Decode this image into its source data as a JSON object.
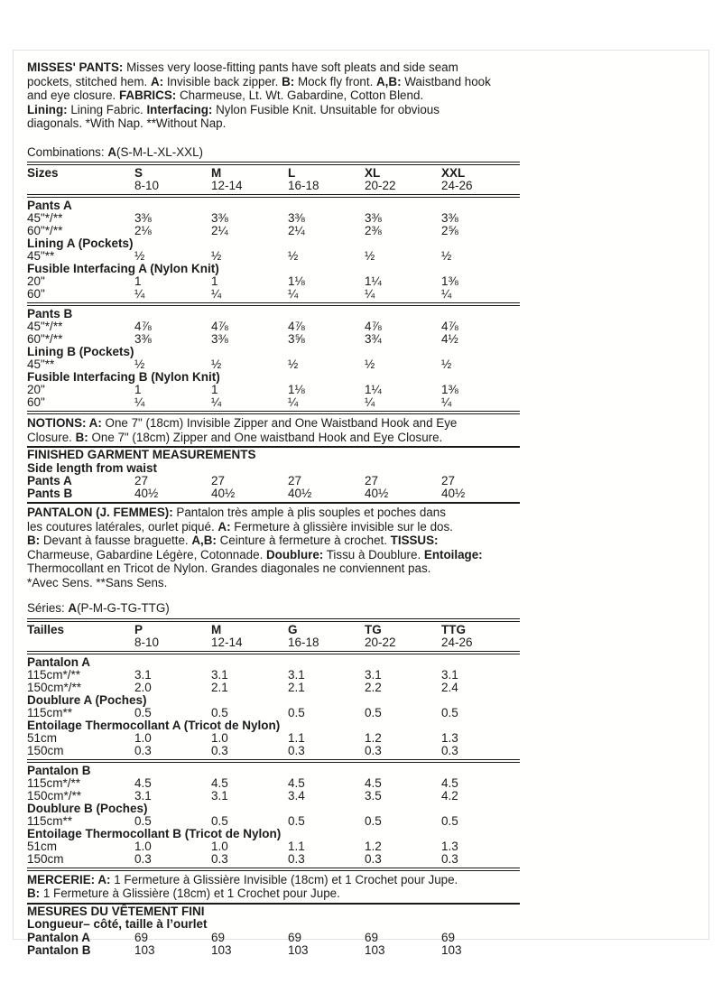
{
  "intro_en": {
    "runs": [
      {
        "t": "MISSES' PANTS:",
        "b": 1
      },
      {
        "t": " Misses very loose-fitting pants have soft pleats and side seam\npockets, stitched hem. "
      },
      {
        "t": "A:",
        "b": 1
      },
      {
        "t": " Invisible back zipper. "
      },
      {
        "t": "B:",
        "b": 1
      },
      {
        "t": " Mock fly front. "
      },
      {
        "t": "A,B:",
        "b": 1
      },
      {
        "t": " Waistband hook\nand eye closure. "
      },
      {
        "t": "FABRICS:",
        "b": 1
      },
      {
        "t": " Charmeuse, Lt. Wt. Gabardine, Cotton Blend.\n"
      },
      {
        "t": "Lining:",
        "b": 1
      },
      {
        "t": " Lining Fabric. "
      },
      {
        "t": "Interfacing:",
        "b": 1
      },
      {
        "t": " Nylon Fusible Knit. Unsuitable for obvious\ndiagonals. *With Nap. **Without Nap."
      }
    ]
  },
  "combinations": {
    "runs": [
      {
        "t": "Combinations: "
      },
      {
        "t": "A",
        "b": 1
      },
      {
        "t": "(S-M-L-XL-XXL)"
      }
    ]
  },
  "size_table_en": {
    "rows": [
      {
        "rule": "major"
      },
      {
        "label": "Sizes",
        "bold": true,
        "values": [
          "S",
          "M",
          "L",
          "XL",
          "XXL"
        ],
        "boldValues": true
      },
      {
        "label": "",
        "values": [
          "8-10",
          "12-14",
          "16-18",
          "20-22",
          "24-26"
        ]
      },
      {
        "rule": "major"
      },
      {
        "section": "Pants A"
      },
      {
        "label": "45\"*/**",
        "values": [
          "3⅜",
          "3⅜",
          "3⅜",
          "3⅜",
          "3⅜"
        ]
      },
      {
        "label": "60\"*/**",
        "values": [
          "2⅛",
          "2¼",
          "2¼",
          "2⅜",
          "2⅝"
        ]
      },
      {
        "section": "Lining A (Pockets)"
      },
      {
        "label": "45\"**",
        "values": [
          "½",
          "½",
          "½",
          "½",
          "½"
        ]
      },
      {
        "section": "Fusible Interfacing A (Nylon Knit)"
      },
      {
        "label": "20\"",
        "values": [
          "1",
          "1",
          "1⅛",
          "1¼",
          "1⅜"
        ]
      },
      {
        "label": "60\"",
        "values": [
          "¼",
          "¼",
          "¼",
          "¼",
          "¼"
        ]
      },
      {
        "rule": "major"
      },
      {
        "section": "Pants B"
      },
      {
        "label": "45\"*/**",
        "values": [
          "4⅞",
          "4⅞",
          "4⅞",
          "4⅞",
          "4⅞"
        ]
      },
      {
        "label": "60\"*/**",
        "values": [
          "3⅜",
          "3⅜",
          "3⅝",
          "3¾",
          "4½"
        ]
      },
      {
        "section": "Lining B (Pockets)"
      },
      {
        "label": "45\"**",
        "values": [
          "½",
          "½",
          "½",
          "½",
          "½"
        ]
      },
      {
        "section": "Fusible Interfacing B (Nylon Knit)"
      },
      {
        "label": "20\"",
        "values": [
          "1",
          "1",
          "1⅛",
          "1¼",
          "1⅜"
        ]
      },
      {
        "label": "60\"",
        "values": [
          "¼",
          "¼",
          "¼",
          "¼",
          "¼"
        ]
      },
      {
        "rule": "major"
      }
    ]
  },
  "notions": {
    "runs": [
      {
        "t": "NOTIONS: A:",
        "b": 1
      },
      {
        "t": " One 7\" (18cm) Invisible Zipper and One Waistband Hook and Eye\nClosure. "
      },
      {
        "t": "B:",
        "b": 1
      },
      {
        "t": " One 7\" (18cm) Zipper and One waistband Hook and Eye Closure."
      }
    ]
  },
  "finished": {
    "title": "FINISHED GARMENT MEASUREMENTS",
    "subtitle": "Side length from waist",
    "rows": [
      {
        "label": "Pants A",
        "bold": true,
        "values": [
          "27",
          "27",
          "27",
          "27",
          "27"
        ]
      },
      {
        "label": "Pants B",
        "bold": true,
        "values": [
          "40½",
          "40½",
          "40½",
          "40½",
          "40½"
        ]
      }
    ]
  },
  "intro_fr": {
    "runs": [
      {
        "t": "PANTALON (J. FEMMES):",
        "b": 1
      },
      {
        "t": " Pantalon très ample à plis souples et poches dans\nles coutures latérales, ourlet piqué. "
      },
      {
        "t": "A:",
        "b": 1
      },
      {
        "t": " Fermeture à glissière invisible sur le dos.\n"
      },
      {
        "t": "B:",
        "b": 1
      },
      {
        "t": " Devant à fausse braguette. "
      },
      {
        "t": "A,B:",
        "b": 1
      },
      {
        "t": " Ceinture à fermeture à crochet. "
      },
      {
        "t": "TISSUS:",
        "b": 1
      },
      {
        "t": "\nCharmeuse, Gabardine Légère, Cotonnade. "
      },
      {
        "t": "Doublure:",
        "b": 1
      },
      {
        "t": " Tissu à Doublure. "
      },
      {
        "t": "Entoilage:",
        "b": 1
      },
      {
        "t": "\nThermocollant en Tricot de Nylon. Grandes diagonales ne conviennent pas.\n*Avec Sens. **Sans Sens."
      }
    ]
  },
  "series": {
    "runs": [
      {
        "t": "Séries: "
      },
      {
        "t": "A",
        "b": 1
      },
      {
        "t": "(P-M-G-TG-TTG)"
      }
    ]
  },
  "size_table_fr": {
    "rows": [
      {
        "rule": "major"
      },
      {
        "label": "Tailles",
        "bold": true,
        "values": [
          "P",
          "M",
          "G",
          "TG",
          "TTG"
        ],
        "boldValues": true
      },
      {
        "label": "",
        "values": [
          "8-10",
          "12-14",
          "16-18",
          "20-22",
          "24-26"
        ]
      },
      {
        "rule": "major"
      },
      {
        "section": "Pantalon A"
      },
      {
        "label": "115cm*/**",
        "values": [
          "3.1",
          "3.1",
          "3.1",
          "3.1",
          "3.1"
        ]
      },
      {
        "label": "150cm*/**",
        "values": [
          "2.0",
          "2.1",
          "2.1",
          "2.2",
          "2.4"
        ]
      },
      {
        "section": "Doublure A (Poches)"
      },
      {
        "label": "115cm**",
        "values": [
          "0.5",
          "0.5",
          "0.5",
          "0.5",
          "0.5"
        ]
      },
      {
        "section": "Entoilage Thermocollant A (Tricot de Nylon)"
      },
      {
        "label": "51cm",
        "values": [
          "1.0",
          "1.0",
          "1.1",
          "1.2",
          "1.3"
        ]
      },
      {
        "label": "150cm",
        "values": [
          "0.3",
          "0.3",
          "0.3",
          "0.3",
          "0.3"
        ]
      },
      {
        "rule": "major"
      },
      {
        "section": "Pantalon B"
      },
      {
        "label": "115cm*/**",
        "values": [
          "4.5",
          "4.5",
          "4.5",
          "4.5",
          "4.5"
        ]
      },
      {
        "label": "150cm*/**",
        "values": [
          "3.1",
          "3.1",
          "3.4",
          "3.5",
          "4.2"
        ]
      },
      {
        "section": "Doublure B (Poches)"
      },
      {
        "label": "115cm**",
        "values": [
          "0.5",
          "0.5",
          "0.5",
          "0.5",
          "0.5"
        ]
      },
      {
        "section": "Entoilage Thermocollant B (Tricot de Nylon)"
      },
      {
        "label": "51cm",
        "values": [
          "1.0",
          "1.0",
          "1.1",
          "1.2",
          "1.3"
        ]
      },
      {
        "label": "150cm",
        "values": [
          "0.3",
          "0.3",
          "0.3",
          "0.3",
          "0.3"
        ]
      },
      {
        "rule": "major"
      }
    ]
  },
  "mercerie": {
    "runs": [
      {
        "t": "MERCERIE: A:",
        "b": 1
      },
      {
        "t": " 1 Fermeture à Glissière Invisible (18cm) et 1 Crochet pour Jupe.\n"
      },
      {
        "t": "B:",
        "b": 1
      },
      {
        "t": " 1 Fermeture à Glissière (18cm) et 1 Crochet pour Jupe."
      }
    ]
  },
  "mesures": {
    "title": "MESURES DU VÊTEMENT FINI",
    "subtitle": "Longueur– côté, taille à l’ourlet",
    "rows": [
      {
        "label": "Pantalon A",
        "bold": true,
        "values": [
          "69",
          "69",
          "69",
          "69",
          "69"
        ]
      },
      {
        "label": "Pantalon B",
        "bold": true,
        "values": [
          "103",
          "103",
          "103",
          "103",
          "103"
        ]
      }
    ]
  }
}
